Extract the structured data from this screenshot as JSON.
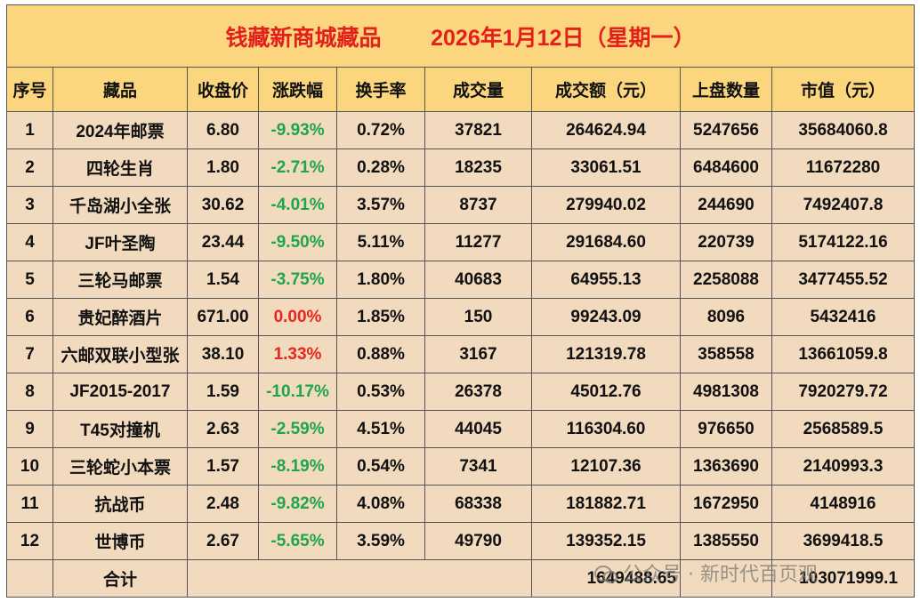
{
  "header": {
    "title": "钱藏新商城藏品        2026年1月12日（星期一）"
  },
  "table": {
    "columns": [
      "序号",
      "藏品",
      "收盘价",
      "涨跌幅",
      "换手率",
      "成交量",
      "成交额（元）",
      "上盘数量",
      "市值（元）"
    ],
    "rows": [
      [
        "1",
        "2024年邮票",
        "6.80",
        "-9.93%",
        "0.72%",
        "37821",
        "264624.94",
        "5247656",
        "35684060.8"
      ],
      [
        "2",
        "四轮生肖",
        "1.80",
        "-2.71%",
        "0.28%",
        "18235",
        "33061.51",
        "6484600",
        "11672280"
      ],
      [
        "3",
        "千岛湖小全张",
        "30.62",
        "-4.01%",
        "3.57%",
        "8737",
        "279940.02",
        "244690",
        "7492407.8"
      ],
      [
        "4",
        "JF叶圣陶",
        "23.44",
        "-9.50%",
        "5.11%",
        "11277",
        "291684.60",
        "220739",
        "5174122.16"
      ],
      [
        "5",
        "三轮马邮票",
        "1.54",
        "-3.75%",
        "1.80%",
        "40683",
        "64955.13",
        "2258088",
        "3477455.52"
      ],
      [
        "6",
        "贵妃醉酒片",
        "671.00",
        "0.00%",
        "1.85%",
        "150",
        "99243.09",
        "8096",
        "5432416"
      ],
      [
        "7",
        "六邮双联小型张",
        "38.10",
        "1.33%",
        "0.88%",
        "3167",
        "121319.78",
        "358558",
        "13661059.8"
      ],
      [
        "8",
        "JF2015-2017",
        "1.59",
        "-10.17%",
        "0.53%",
        "26378",
        "45012.76",
        "4981308",
        "7920279.72"
      ],
      [
        "9",
        "T45对撞机",
        "2.63",
        "-2.59%",
        "4.51%",
        "44045",
        "116304.60",
        "976650",
        "2568589.5"
      ],
      [
        "10",
        "三轮蛇小本票",
        "1.57",
        "-8.19%",
        "0.54%",
        "7341",
        "12107.36",
        "1363690",
        "2140993.3"
      ],
      [
        "11",
        "抗战币",
        "2.48",
        "-9.82%",
        "4.08%",
        "68338",
        "181882.71",
        "1672950",
        "4148916"
      ],
      [
        "12",
        "世博币",
        "2.67",
        "-5.65%",
        "3.59%",
        "49790",
        "139352.15",
        "1385550",
        "3699418.5"
      ]
    ],
    "change_colors": [
      "#1fa64a",
      "#1fa64a",
      "#1fa64a",
      "#1fa64a",
      "#1fa64a",
      "#e8251f",
      "#e8251f",
      "#1fa64a",
      "#1fa64a",
      "#1fa64a",
      "#1fa64a",
      "#1fa64a"
    ],
    "total": {
      "label": "合计",
      "turnover": "1649488.65",
      "market_value": "103071999.1"
    }
  },
  "watermark": "公众号 · 新时代百页观"
}
